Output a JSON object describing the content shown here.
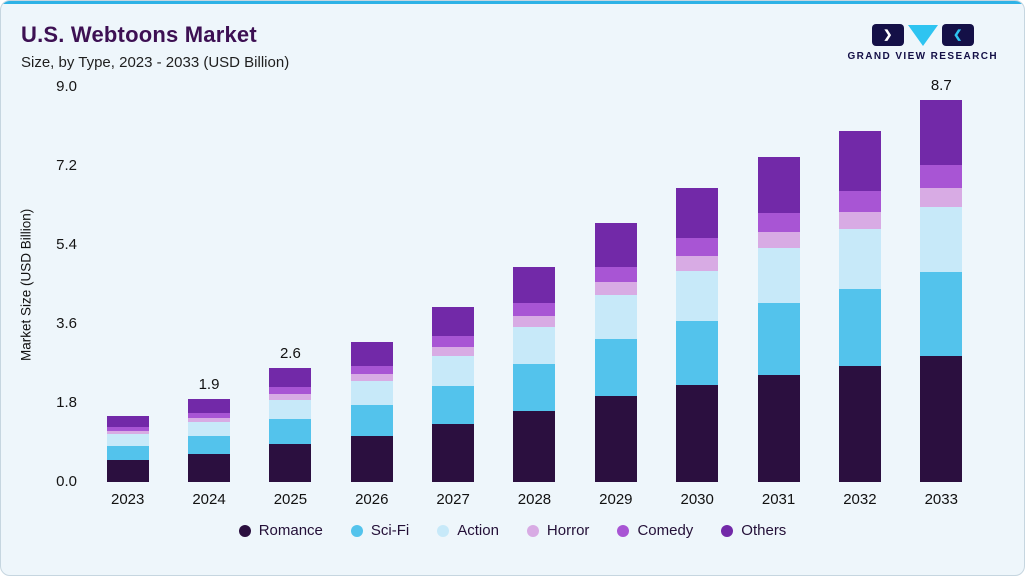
{
  "logo": {
    "text": "GRAND VIEW RESEARCH",
    "accent_color": "#2ec4f1",
    "navy_color": "#141047"
  },
  "chart_data": {
    "type": "bar",
    "stacked": true,
    "title": "U.S. Webtoons Market",
    "subtitle": "Size, by Type, 2023 - 2033 (USD Billion)",
    "ylabel": "Market Size (USD Billion)",
    "xlabel": "",
    "ylim": [
      0,
      9.0
    ],
    "yticks": [
      "9.0",
      "7.2",
      "5.4",
      "3.6",
      "1.8",
      "0.0"
    ],
    "grid": false,
    "legend_position": "bottom",
    "categories": [
      "2023",
      "2024",
      "2025",
      "2026",
      "2027",
      "2028",
      "2029",
      "2030",
      "2031",
      "2032",
      "2033"
    ],
    "totals": [
      1.5,
      1.9,
      2.6,
      3.2,
      4.0,
      4.9,
      5.9,
      6.7,
      7.4,
      8.0,
      8.7
    ],
    "bar_value_labels": [
      "",
      "1.9",
      "2.6",
      "",
      "",
      "",
      "",
      "",
      "",
      "",
      "8.7"
    ],
    "series": [
      {
        "name": "Romance",
        "color": "#2b0f3f",
        "values": [
          0.5,
          0.63,
          0.86,
          1.06,
          1.32,
          1.62,
          1.95,
          2.21,
          2.44,
          2.64,
          2.87
        ]
      },
      {
        "name": "Sci-Fi",
        "color": "#53c3ec",
        "values": [
          0.33,
          0.42,
          0.57,
          0.7,
          0.88,
          1.08,
          1.3,
          1.47,
          1.63,
          1.76,
          1.91
        ]
      },
      {
        "name": "Action",
        "color": "#c7e9f9",
        "values": [
          0.26,
          0.32,
          0.44,
          0.54,
          0.68,
          0.83,
          1.0,
          1.14,
          1.26,
          1.36,
          1.48
        ]
      },
      {
        "name": "Horror",
        "color": "#d8abe4",
        "values": [
          0.07,
          0.1,
          0.13,
          0.16,
          0.2,
          0.25,
          0.3,
          0.34,
          0.37,
          0.4,
          0.44
        ]
      },
      {
        "name": "Comedy",
        "color": "#a855d4",
        "values": [
          0.09,
          0.11,
          0.16,
          0.19,
          0.24,
          0.29,
          0.35,
          0.4,
          0.44,
          0.48,
          0.52
        ]
      },
      {
        "name": "Others",
        "color": "#7229a8",
        "values": [
          0.25,
          0.32,
          0.44,
          0.55,
          0.68,
          0.83,
          1.0,
          1.14,
          1.26,
          1.36,
          1.48
        ]
      }
    ]
  }
}
